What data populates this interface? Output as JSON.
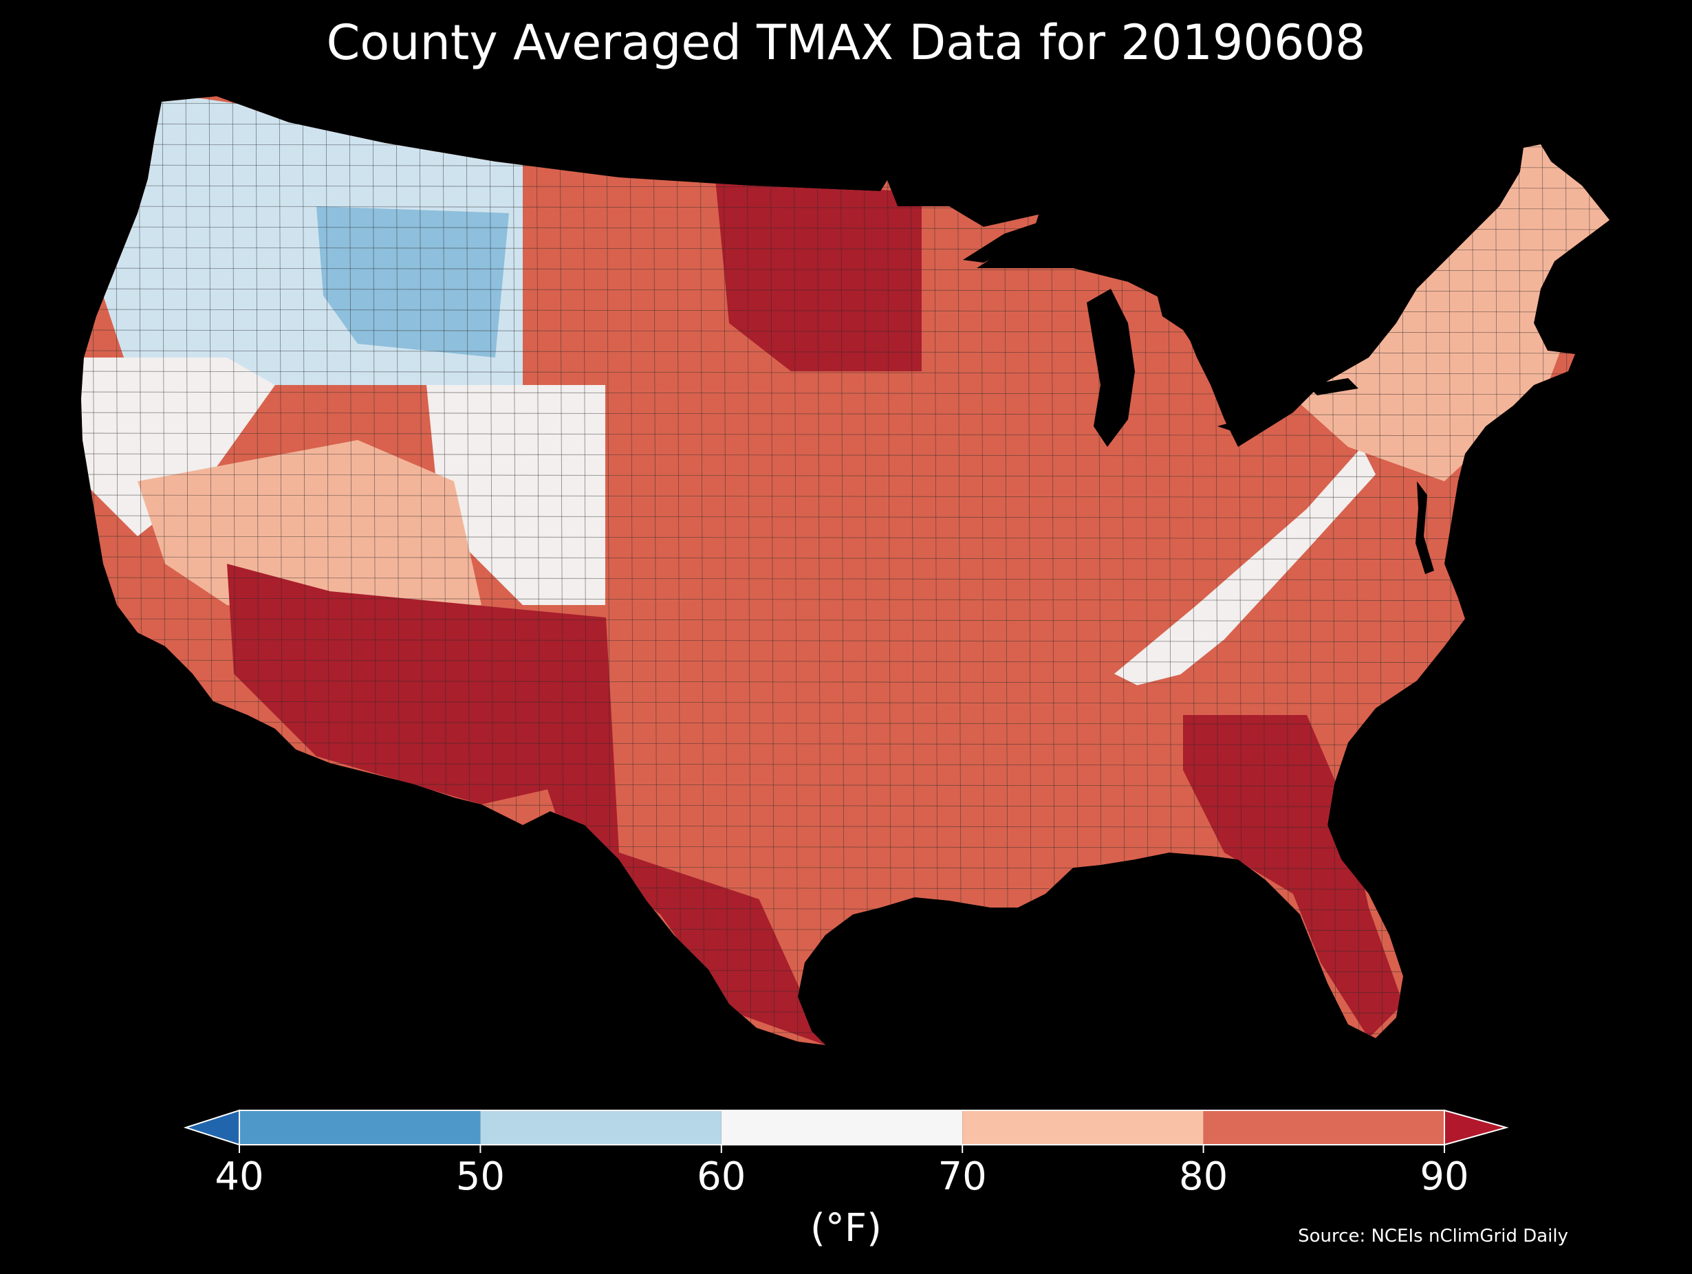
{
  "title": "County Averaged TMAX Data for 20190608",
  "map": {
    "region": "Contiguous United States",
    "variable": "TMAX",
    "aggregation": "County averaged",
    "date": "20190608",
    "background_color": "#000000",
    "border_color": "#2a2a2a",
    "regional_pattern": [
      {
        "area": "pacific-northwest-and-northern-rockies",
        "class_index": 1
      },
      {
        "area": "idaho-montana-core",
        "class_index": 0
      },
      {
        "area": "california-coast-and-great-basin-north",
        "class_index": 2
      },
      {
        "area": "wyoming-colorado-high-plains",
        "class_index": 2
      },
      {
        "area": "central-california-nevada-utah",
        "class_index": 3
      },
      {
        "area": "arizona-new-mexico-south",
        "class_index": 5
      },
      {
        "area": "texas-south-and-rio-grande",
        "class_index": 5
      },
      {
        "area": "great-plains-and-midwest",
        "class_index": 4
      },
      {
        "area": "north-dakota-minnesota",
        "class_index": 5
      },
      {
        "area": "appalachian-ridge",
        "class_index": 2
      },
      {
        "area": "northeast-and-great-lakes",
        "class_index": 3
      },
      {
        "area": "southeast-and-gulf-coast",
        "class_index": 4
      },
      {
        "area": "georgia-florida",
        "class_index": 5
      },
      {
        "area": "maine",
        "class_index": 3
      }
    ]
  },
  "colorbar": {
    "ticks": [
      "40",
      "50",
      "60",
      "70",
      "80",
      "90"
    ],
    "tick_values": [
      40,
      50,
      60,
      70,
      80,
      90
    ],
    "unit_label": "(°F)",
    "under_color": "#2166ac",
    "over_color": "#b2182b",
    "bins": [
      {
        "min": 40,
        "max": 50,
        "color": "#4d98c9"
      },
      {
        "min": 50,
        "max": 60,
        "color": "#b6d7e8"
      },
      {
        "min": 60,
        "max": 70,
        "color": "#f6f6f6"
      },
      {
        "min": 70,
        "max": 80,
        "color": "#f9c2a6"
      },
      {
        "min": 80,
        "max": 90,
        "color": "#dc6a57"
      }
    ],
    "map_shades": [
      "#8ebfdc",
      "#cfe3ef",
      "#f2efee",
      "#f3b59a",
      "#d8624e",
      "#a91f2c"
    ]
  },
  "source": "Source: NCEIs nClimGrid Daily"
}
